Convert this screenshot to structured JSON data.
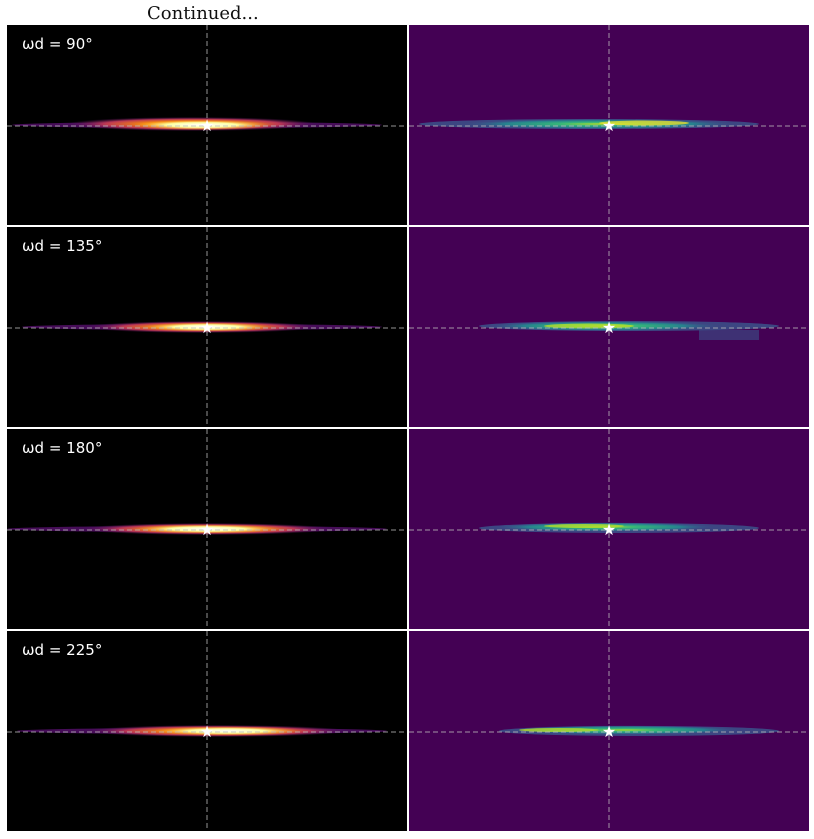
{
  "heading": "Continued...",
  "rows": [
    {
      "label": "ωd = 90°"
    },
    {
      "label": "ωd = 135°"
    },
    {
      "label": "ωd = 180°"
    },
    {
      "label": "ωd = 225°"
    }
  ],
  "colors": {
    "left_background": "#000000",
    "right_background": "#440154",
    "guide_lines": "#bbbbbb",
    "star": "#ffffff"
  }
}
